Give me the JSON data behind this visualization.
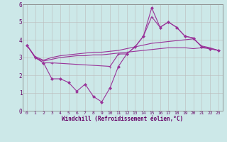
{
  "xlabel": "Windchill (Refroidissement éolien,°C)",
  "x_values": [
    0,
    1,
    2,
    3,
    4,
    5,
    6,
    7,
    8,
    9,
    10,
    11,
    12,
    13,
    14,
    15,
    16,
    17,
    18,
    19,
    20,
    21,
    22,
    23
  ],
  "line_zigzag": [
    3.7,
    3.0,
    2.7,
    1.8,
    1.8,
    1.6,
    1.1,
    1.5,
    0.8,
    0.5,
    1.3,
    2.5,
    3.2,
    3.6,
    4.2,
    5.8,
    4.7,
    5.0,
    4.7,
    4.2,
    4.1,
    3.6,
    3.5,
    3.4
  ],
  "line_skip": [
    3.7,
    3.0,
    2.7,
    2.7,
    null,
    null,
    null,
    null,
    null,
    null,
    2.5,
    3.2,
    3.2,
    3.6,
    4.2,
    5.3,
    4.7,
    5.0,
    4.7,
    4.2,
    4.1,
    3.6,
    3.5,
    3.4
  ],
  "line_upper": [
    3.7,
    3.05,
    2.85,
    3.0,
    3.1,
    3.15,
    3.2,
    3.25,
    3.3,
    3.3,
    3.35,
    3.4,
    3.5,
    3.6,
    3.7,
    3.8,
    3.85,
    3.9,
    3.95,
    4.0,
    4.05,
    3.65,
    3.55,
    3.4
  ],
  "line_lower": [
    3.7,
    3.0,
    2.8,
    2.9,
    3.0,
    3.05,
    3.1,
    3.1,
    3.15,
    3.15,
    3.2,
    3.25,
    3.3,
    3.35,
    3.4,
    3.45,
    3.5,
    3.55,
    3.55,
    3.55,
    3.5,
    3.55,
    3.5,
    3.4
  ],
  "ylim": [
    0,
    6
  ],
  "xlim": [
    -0.5,
    23.5
  ],
  "color": "#993399",
  "bg_color": "#cce8e8",
  "grid_color": "#bbbbbb",
  "spine_color": "#888888"
}
